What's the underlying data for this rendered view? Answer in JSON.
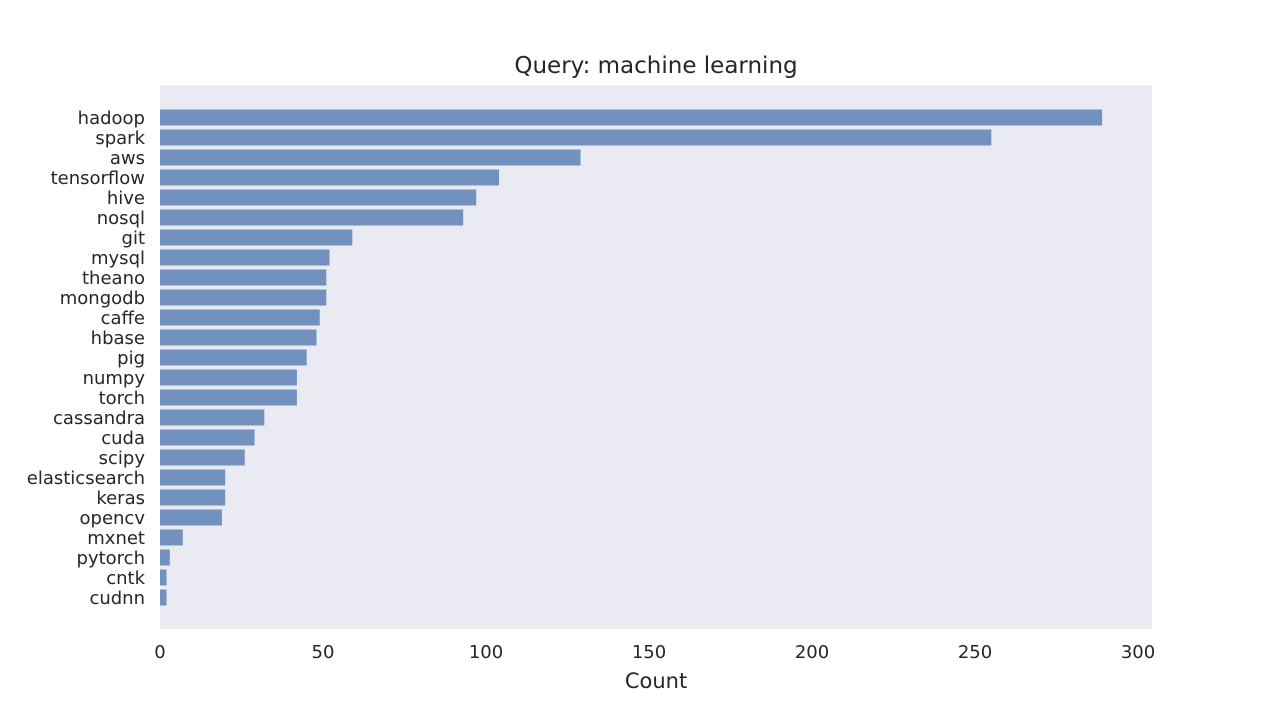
{
  "chart_data": {
    "type": "bar",
    "orientation": "horizontal",
    "title": "Query: machine learning",
    "xlabel": "Count",
    "ylabel": "",
    "xlim": [
      0,
      305
    ],
    "xticks": [
      0,
      50,
      100,
      150,
      200,
      250,
      300
    ],
    "grid": false,
    "bar_color": "#7291bf",
    "plot_background": "#eaeaf2",
    "categories": [
      "hadoop",
      "spark",
      "aws",
      "tensorflow",
      "hive",
      "nosql",
      "git",
      "mysql",
      "theano",
      "mongodb",
      "caffe",
      "hbase",
      "pig",
      "numpy",
      "torch",
      "cassandra",
      "cuda",
      "scipy",
      "elasticsearch",
      "keras",
      "opencv",
      "mxnet",
      "pytorch",
      "cntk",
      "cudnn"
    ],
    "values": [
      289,
      255,
      129,
      104,
      97,
      93,
      59,
      52,
      51,
      51,
      49,
      48,
      45,
      42,
      42,
      32,
      29,
      26,
      20,
      20,
      19,
      7,
      3,
      2,
      2
    ]
  }
}
